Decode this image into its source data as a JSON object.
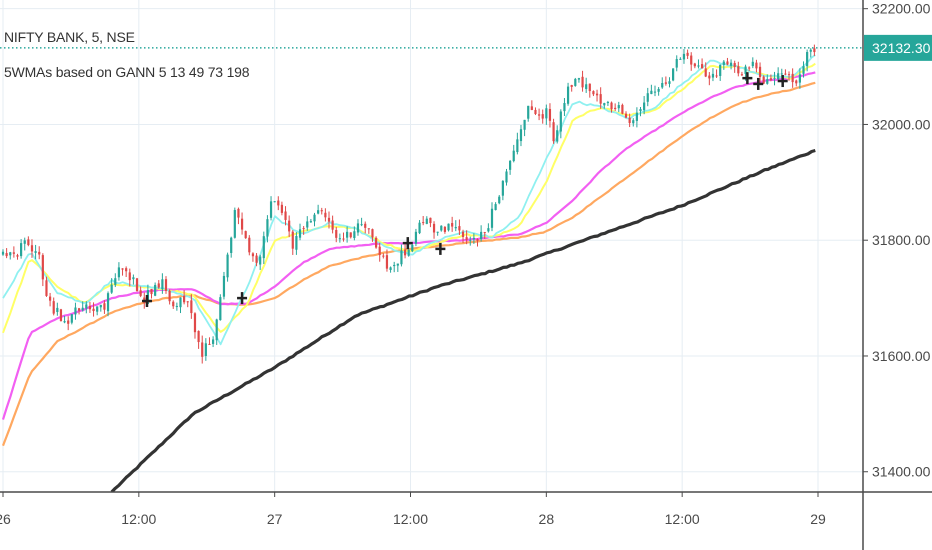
{
  "header": {
    "symbol_line": "NIFTY BANK, 5, NSE",
    "indicator_line": "5WMAs based on GANN 5 13 49 73 198"
  },
  "colors": {
    "background": "#ffffff",
    "grid": "#e6edf3",
    "axis_line": "#4a4a4a",
    "candle_up": "#26a69a",
    "candle_down": "#e04848",
    "wma5": "#8ff0f0",
    "wma13": "#ffff66",
    "wma49": "#f25ff2",
    "wma73": "#ffa860",
    "wma198": "#333333",
    "last_price_line": "#009688",
    "last_price_tag": "#26a69a",
    "cross_marker": "#222222"
  },
  "chart_data": {
    "type": "candlestick",
    "title": "NIFTY BANK, 5, NSE",
    "subtitle": "5WMAs based on GANN 5 13 49 73 198",
    "x_tick_labels": [
      "26",
      "12:00",
      "27",
      "12:00",
      "28",
      "12:00",
      "29"
    ],
    "x_tick_positions_days": [
      0.0,
      0.5,
      1.0,
      1.5,
      2.0,
      2.5,
      3.0
    ],
    "x_range_days": [
      0.0,
      3.0
    ],
    "y_tick_labels": [
      "31400.00",
      "31600.00",
      "31800.00",
      "32000.00",
      "32200.00"
    ],
    "y_ticks": [
      31400,
      31600,
      31800,
      32000,
      32200
    ],
    "ylim": [
      31365,
      32215
    ],
    "last_price": 32132.3,
    "last_price_label": "32132.30",
    "grid": true,
    "close_path_days": [
      0.0,
      0.05,
      0.08,
      0.13,
      0.17,
      0.23,
      0.3,
      0.37,
      0.43,
      0.48,
      0.52,
      0.58,
      0.63,
      0.68,
      0.73,
      0.78,
      0.82,
      0.86,
      0.88,
      0.91,
      0.94,
      0.97,
      0.99,
      1.03,
      1.07,
      1.1,
      1.15,
      1.19,
      1.23,
      1.27,
      1.32,
      1.37,
      1.41,
      1.45,
      1.5,
      1.55,
      1.59,
      1.64,
      1.69,
      1.74,
      1.78,
      1.83,
      1.86,
      1.9,
      1.94,
      1.97,
      2.0,
      2.03,
      2.07,
      2.11,
      2.16,
      2.21,
      2.26,
      2.31,
      2.36,
      2.41,
      2.45,
      2.49,
      2.53,
      2.57,
      2.61,
      2.65,
      2.69,
      2.73,
      2.77,
      2.81,
      2.86,
      2.9,
      2.93,
      2.96,
      2.99
    ],
    "close_path_values": [
      31775,
      31770,
      31800,
      31775,
      31690,
      31660,
      31690,
      31680,
      31755,
      31730,
      31700,
      31730,
      31690,
      31700,
      31600,
      31640,
      31760,
      31860,
      31820,
      31770,
      31750,
      31830,
      31870,
      31845,
      31785,
      31825,
      31850,
      31835,
      31800,
      31810,
      31830,
      31795,
      31755,
      31765,
      31790,
      31840,
      31810,
      31825,
      31810,
      31800,
      31820,
      31885,
      31920,
      31990,
      32040,
      32010,
      32020,
      31970,
      32050,
      32080,
      32060,
      32040,
      32030,
      32010,
      32040,
      32060,
      32070,
      32120,
      32110,
      32090,
      32080,
      32110,
      32100,
      32090,
      32105,
      32070,
      32100,
      32080,
      32080,
      32120,
      32132
    ],
    "wma5_days": [
      0.0,
      0.1,
      0.2,
      0.3,
      0.4,
      0.5,
      0.6,
      0.7,
      0.8,
      0.9,
      1.0,
      1.1,
      1.2,
      1.3,
      1.4,
      1.5,
      1.6,
      1.7,
      1.8,
      1.9,
      2.0,
      2.1,
      2.2,
      2.3,
      2.4,
      2.5,
      2.6,
      2.7,
      2.8,
      2.9,
      2.99
    ],
    "wma5_values": [
      31700,
      31780,
      31710,
      31690,
      31730,
      31720,
      31715,
      31700,
      31620,
      31720,
      31840,
      31810,
      31830,
      31820,
      31790,
      31775,
      31800,
      31815,
      31805,
      31840,
      31940,
      32040,
      32030,
      32010,
      32030,
      32070,
      32110,
      32100,
      32085,
      32080,
      32120
    ],
    "wma13_days": [
      0.0,
      0.1,
      0.2,
      0.3,
      0.4,
      0.5,
      0.6,
      0.7,
      0.8,
      0.9,
      1.0,
      1.1,
      1.2,
      1.3,
      1.4,
      1.5,
      1.6,
      1.7,
      1.8,
      1.9,
      2.0,
      2.1,
      2.2,
      2.3,
      2.4,
      2.5,
      2.6,
      2.7,
      2.8,
      2.9,
      2.99
    ],
    "wma13_values": [
      31640,
      31770,
      31720,
      31690,
      31725,
      31720,
      31715,
      31705,
      31640,
      31690,
      31800,
      31815,
      31825,
      31820,
      31795,
      31780,
      31795,
      31810,
      31805,
      31825,
      31900,
      32010,
      32030,
      32015,
      32025,
      32060,
      32100,
      32100,
      32085,
      32080,
      32105
    ],
    "wma49_days": [
      0.0,
      0.1,
      0.2,
      0.3,
      0.4,
      0.5,
      0.6,
      0.7,
      0.8,
      0.9,
      1.0,
      1.1,
      1.2,
      1.3,
      1.4,
      1.5,
      1.6,
      1.7,
      1.8,
      1.9,
      2.0,
      2.1,
      2.2,
      2.3,
      2.4,
      2.5,
      2.6,
      2.7,
      2.8,
      2.9,
      2.99
    ],
    "wma49_values": [
      31490,
      31640,
      31665,
      31680,
      31700,
      31710,
      31715,
      31715,
      31690,
      31690,
      31720,
      31760,
      31785,
      31790,
      31795,
      31795,
      31798,
      31800,
      31805,
      31810,
      31830,
      31870,
      31920,
      31960,
      31990,
      32020,
      32045,
      32065,
      32075,
      32080,
      32090
    ],
    "wma73_days": [
      0.0,
      0.1,
      0.2,
      0.3,
      0.4,
      0.5,
      0.6,
      0.7,
      0.8,
      0.9,
      1.0,
      1.1,
      1.2,
      1.3,
      1.4,
      1.5,
      1.6,
      1.7,
      1.8,
      1.9,
      2.0,
      2.1,
      2.2,
      2.3,
      2.4,
      2.5,
      2.6,
      2.7,
      2.8,
      2.9,
      2.99
    ],
    "wma73_values": [
      31445,
      31570,
      31625,
      31650,
      31675,
      31690,
      31700,
      31705,
      31690,
      31688,
      31700,
      31730,
      31755,
      31768,
      31778,
      31785,
      31790,
      31795,
      31800,
      31805,
      31815,
      31840,
      31875,
      31910,
      31945,
      31980,
      32010,
      32035,
      32050,
      32060,
      32072
    ],
    "wma198_days": [
      0.4,
      0.7,
      1.0,
      1.3,
      1.6,
      1.9,
      2.2,
      2.5,
      2.8,
      2.99
    ],
    "wma198_values": [
      31365,
      31500,
      31580,
      31670,
      31720,
      31760,
      31810,
      31860,
      31920,
      31955
    ],
    "cross_markers_days": [
      0.53,
      0.88,
      1.49,
      1.61,
      2.74,
      2.78,
      2.87
    ],
    "cross_markers_values": [
      31695,
      31700,
      31795,
      31785,
      32080,
      32070,
      32075
    ]
  }
}
